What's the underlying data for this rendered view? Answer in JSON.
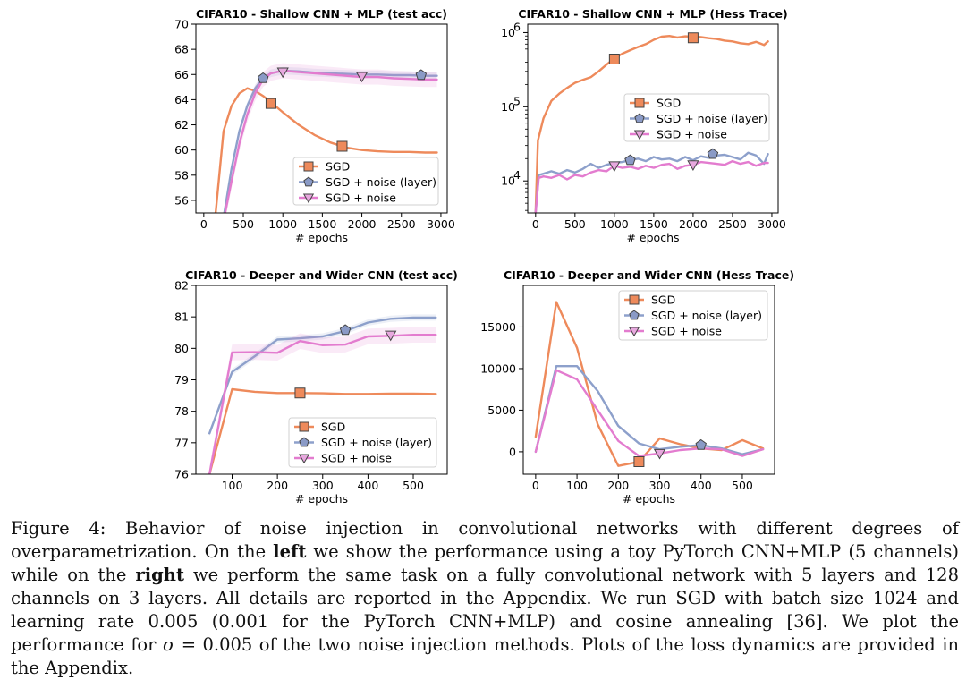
{
  "colors": {
    "sgd": "#ee8a5b",
    "layer": "#8da0cb",
    "noise": "#e37ccf",
    "marker_layer": "#8a9ac6",
    "marker_noise": "#e7a8de"
  },
  "chart_data": [
    {
      "id": "p1",
      "type": "line",
      "title": "CIFAR10 - Shallow CNN + MLP  (test acc)",
      "xlabel": "# epochs",
      "ylabel": "",
      "xlim": [
        -100,
        3080
      ],
      "ylim": [
        55,
        70
      ],
      "yscale": "linear",
      "xticks": [
        {
          "v": 0,
          "label": "0"
        },
        {
          "v": 500,
          "label": "500"
        },
        {
          "v": 1000,
          "label": "1000"
        },
        {
          "v": 1500,
          "label": "1500"
        },
        {
          "v": 2000,
          "label": "2000"
        },
        {
          "v": 2500,
          "label": "2500"
        },
        {
          "v": 3000,
          "label": "3000"
        }
      ],
      "yticks": [
        {
          "v": 56,
          "label": "56"
        },
        {
          "v": 58,
          "label": "58"
        },
        {
          "v": 60,
          "label": "60"
        },
        {
          "v": 62,
          "label": "62"
        },
        {
          "v": 64,
          "label": "64"
        },
        {
          "v": 66,
          "label": "66"
        },
        {
          "v": 68,
          "label": "68"
        },
        {
          "v": 70,
          "label": "70"
        }
      ],
      "legend": {
        "position": "lower-right",
        "entries": [
          "SGD",
          "SGD + noise (layer)",
          "SGD + noise"
        ]
      },
      "series": [
        {
          "name": "SGD",
          "key": "sgd",
          "marker": "square",
          "band": 0,
          "x": [
            150,
            250,
            350,
            450,
            550,
            650,
            750,
            850,
            1000,
            1200,
            1400,
            1600,
            1800,
            2000,
            2200,
            2400,
            2600,
            2800,
            2950
          ],
          "y": [
            55,
            61.5,
            63.5,
            64.5,
            64.9,
            64.7,
            64.3,
            63.8,
            63.0,
            62.0,
            61.2,
            60.6,
            60.2,
            60.0,
            59.9,
            59.85,
            59.85,
            59.8,
            59.8
          ],
          "markers": [
            {
              "x": 850,
              "y": 63.7
            },
            {
              "x": 1750,
              "y": 60.3
            }
          ]
        },
        {
          "name": "SGD + noise (layer)",
          "key": "layer",
          "marker": "pentagon",
          "band": 0.3,
          "x": [
            260,
            350,
            450,
            550,
            650,
            750,
            850,
            1000,
            1200,
            1400,
            1600,
            1800,
            2000,
            2200,
            2400,
            2600,
            2800,
            2950
          ],
          "y": [
            55,
            58.5,
            61.5,
            63.5,
            64.9,
            65.7,
            66.1,
            66.3,
            66.25,
            66.15,
            66.1,
            66.05,
            66.0,
            66.0,
            65.95,
            65.95,
            65.9,
            65.9
          ],
          "markers": [
            {
              "x": 750,
              "y": 65.7
            },
            {
              "x": 2750,
              "y": 65.95
            }
          ]
        },
        {
          "name": "SGD + noise",
          "key": "noise",
          "marker": "tri_down",
          "band": 0.6,
          "x": [
            270,
            350,
            450,
            550,
            650,
            750,
            850,
            1000,
            1200,
            1400,
            1600,
            1800,
            2000,
            2200,
            2400,
            2600,
            2800,
            2950
          ],
          "y": [
            55,
            57.5,
            60.5,
            62.8,
            64.5,
            65.6,
            66.1,
            66.3,
            66.2,
            66.1,
            66.0,
            65.9,
            65.8,
            65.8,
            65.7,
            65.65,
            65.6,
            65.6
          ],
          "markers": [
            {
              "x": 1000,
              "y": 66.2
            },
            {
              "x": 2000,
              "y": 65.85
            }
          ]
        }
      ]
    },
    {
      "id": "p2",
      "type": "line",
      "title": "CIFAR10 - Shallow CNN + MLP  (Hess Trace)",
      "xlabel": "# epochs",
      "ylabel": "",
      "xlim": [
        -100,
        3080
      ],
      "ylim": [
        3700,
        1300000
      ],
      "yscale": "log",
      "xticks": [
        {
          "v": 0,
          "label": "0"
        },
        {
          "v": 500,
          "label": "500"
        },
        {
          "v": 1000,
          "label": "1000"
        },
        {
          "v": 1500,
          "label": "1500"
        },
        {
          "v": 2000,
          "label": "2000"
        },
        {
          "v": 2500,
          "label": "2500"
        },
        {
          "v": 3000,
          "label": "3000"
        }
      ],
      "yticks": [
        {
          "v": 10000,
          "label": "10",
          "exp": "4"
        },
        {
          "v": 100000,
          "label": "10",
          "exp": "5"
        },
        {
          "v": 1000000,
          "label": "10",
          "exp": "6"
        }
      ],
      "legend": {
        "position": "center-right",
        "entries": [
          "SGD",
          "SGD + noise (layer)",
          "SGD + noise"
        ]
      },
      "series": [
        {
          "name": "SGD",
          "key": "sgd",
          "marker": "square",
          "band": 0,
          "x": [
            0,
            30,
            100,
            200,
            300,
            400,
            500,
            600,
            700,
            800,
            900,
            1000,
            1100,
            1200,
            1300,
            1400,
            1500,
            1600,
            1700,
            1800,
            1900,
            2000,
            2100,
            2200,
            2300,
            2400,
            2500,
            2600,
            2700,
            2800,
            2900,
            2950
          ],
          "y": [
            3700,
            35000,
            70000,
            120000,
            150000,
            180000,
            210000,
            230000,
            250000,
            300000,
            370000,
            450000,
            520000,
            580000,
            640000,
            700000,
            800000,
            880000,
            900000,
            860000,
            890000,
            880000,
            870000,
            840000,
            820000,
            780000,
            760000,
            720000,
            700000,
            750000,
            680000,
            760000
          ],
          "markers": [
            {
              "x": 1000,
              "y": 440000
            },
            {
              "x": 2000,
              "y": 850000
            }
          ]
        },
        {
          "name": "SGD + noise (layer)",
          "key": "layer",
          "marker": "pentagon",
          "band": 0,
          "x": [
            0,
            40,
            100,
            200,
            300,
            400,
            500,
            600,
            700,
            800,
            900,
            1000,
            1100,
            1200,
            1300,
            1400,
            1500,
            1600,
            1700,
            1800,
            1900,
            2000,
            2100,
            2200,
            2300,
            2400,
            2500,
            2600,
            2700,
            2800,
            2900,
            2950
          ],
          "y": [
            3700,
            12000,
            12500,
            13500,
            12500,
            14000,
            13000,
            14500,
            17000,
            15000,
            16500,
            17500,
            18000,
            19000,
            20000,
            18500,
            21000,
            19500,
            20000,
            18500,
            21000,
            19000,
            21500,
            20500,
            22000,
            22500,
            21000,
            19500,
            24000,
            22000,
            17000,
            23000
          ],
          "markers": [
            {
              "x": 1200,
              "y": 19000
            },
            {
              "x": 2250,
              "y": 23000
            }
          ]
        },
        {
          "name": "SGD + noise",
          "key": "noise",
          "marker": "tri_down",
          "band": 0,
          "x": [
            0,
            40,
            100,
            200,
            300,
            400,
            500,
            600,
            700,
            800,
            900,
            1000,
            1100,
            1200,
            1300,
            1400,
            1500,
            1600,
            1700,
            1800,
            1900,
            2000,
            2100,
            2200,
            2300,
            2400,
            2500,
            2600,
            2700,
            2800,
            2900,
            2950
          ],
          "y": [
            3700,
            11000,
            11500,
            11000,
            12000,
            10500,
            12000,
            11500,
            13000,
            14000,
            13500,
            16000,
            15000,
            15500,
            14500,
            16000,
            15000,
            16500,
            17000,
            14500,
            16000,
            16500,
            18000,
            17500,
            17000,
            16500,
            18500,
            17000,
            18000,
            16000,
            17500,
            17500
          ],
          "markers": [
            {
              "x": 1000,
              "y": 16000
            },
            {
              "x": 2000,
              "y": 16500
            }
          ]
        }
      ]
    },
    {
      "id": "p3",
      "type": "line",
      "title": "CIFAR10 - Deeper and Wider CNN (test acc)",
      "xlabel": "# epochs",
      "ylabel": "",
      "xlim": [
        20,
        575
      ],
      "ylim": [
        76,
        82
      ],
      "yscale": "linear",
      "xticks": [
        {
          "v": 100,
          "label": "100"
        },
        {
          "v": 200,
          "label": "200"
        },
        {
          "v": 300,
          "label": "300"
        },
        {
          "v": 400,
          "label": "400"
        },
        {
          "v": 500,
          "label": "500"
        }
      ],
      "yticks": [
        {
          "v": 76,
          "label": "76"
        },
        {
          "v": 77,
          "label": "77"
        },
        {
          "v": 78,
          "label": "78"
        },
        {
          "v": 79,
          "label": "79"
        },
        {
          "v": 80,
          "label": "80"
        },
        {
          "v": 81,
          "label": "81"
        },
        {
          "v": 82,
          "label": "82"
        }
      ],
      "legend": {
        "position": "lower-right",
        "entries": [
          "SGD",
          "SGD + noise (layer)",
          "SGD + noise"
        ]
      },
      "series": [
        {
          "name": "SGD",
          "key": "sgd",
          "marker": "square",
          "band": 0,
          "x": [
            50,
            100,
            150,
            200,
            250,
            300,
            350,
            400,
            450,
            500,
            550
          ],
          "y": [
            76.0,
            78.7,
            78.62,
            78.58,
            78.58,
            78.57,
            78.55,
            78.55,
            78.56,
            78.56,
            78.55
          ],
          "markers": [
            {
              "x": 250,
              "y": 78.58
            }
          ]
        },
        {
          "name": "SGD + noise (layer)",
          "key": "layer",
          "marker": "pentagon",
          "band": 0.1,
          "x": [
            50,
            100,
            150,
            200,
            250,
            300,
            350,
            400,
            450,
            500,
            550
          ],
          "y": [
            77.3,
            79.25,
            79.75,
            80.28,
            80.32,
            80.38,
            80.55,
            80.82,
            80.94,
            80.98,
            80.98
          ],
          "markers": [
            {
              "x": 350,
              "y": 80.58
            }
          ]
        },
        {
          "name": "SGD + noise",
          "key": "noise",
          "marker": "tri_down",
          "band": 0.25,
          "x": [
            50,
            100,
            150,
            200,
            250,
            300,
            350,
            400,
            450,
            500,
            550
          ],
          "y": [
            76.0,
            79.87,
            79.88,
            79.86,
            80.23,
            80.1,
            80.12,
            80.38,
            80.4,
            80.43,
            80.43
          ],
          "markers": [
            {
              "x": 450,
              "y": 80.42
            }
          ]
        }
      ]
    },
    {
      "id": "p4",
      "type": "line",
      "title": "CIFAR10 - Deeper and Wider CNN (Hess Trace)",
      "xlabel": "# epochs",
      "ylabel": "",
      "xlim": [
        -30,
        578
      ],
      "ylim": [
        -2700,
        20000
      ],
      "yscale": "linear",
      "xticks": [
        {
          "v": 0,
          "label": "0"
        },
        {
          "v": 100,
          "label": "100"
        },
        {
          "v": 200,
          "label": "200"
        },
        {
          "v": 300,
          "label": "300"
        },
        {
          "v": 400,
          "label": "400"
        },
        {
          "v": 500,
          "label": "500"
        }
      ],
      "yticks": [
        {
          "v": 0,
          "label": "0"
        },
        {
          "v": 5000,
          "label": "5000"
        },
        {
          "v": 10000,
          "label": "10000"
        },
        {
          "v": 15000,
          "label": "15000"
        }
      ],
      "legend": {
        "position": "upper-right",
        "entries": [
          "SGD",
          "SGD + noise (layer)",
          "SGD + noise"
        ]
      },
      "series": [
        {
          "name": "SGD",
          "key": "sgd",
          "marker": "square",
          "band": 0,
          "x": [
            0,
            50,
            100,
            150,
            200,
            250,
            300,
            350,
            400,
            450,
            500,
            550
          ],
          "y": [
            1800,
            18000,
            12500,
            3300,
            -1700,
            -1200,
            1600,
            900,
            400,
            200,
            1400,
            400
          ],
          "markers": [
            {
              "x": 250,
              "y": -1200
            }
          ]
        },
        {
          "name": "SGD + noise (layer)",
          "key": "layer",
          "marker": "pentagon",
          "band": 0,
          "x": [
            0,
            50,
            100,
            150,
            200,
            250,
            300,
            350,
            400,
            450,
            500,
            550
          ],
          "y": [
            0,
            10300,
            10300,
            7300,
            3100,
            1000,
            300,
            600,
            800,
            400,
            -300,
            300
          ],
          "markers": [
            {
              "x": 400,
              "y": 800
            }
          ]
        },
        {
          "name": "SGD + noise",
          "key": "noise",
          "marker": "tri_down",
          "band": 0,
          "x": [
            0,
            50,
            100,
            150,
            200,
            250,
            300,
            350,
            400,
            450,
            500,
            550
          ],
          "y": [
            0,
            9800,
            8700,
            5000,
            1300,
            -500,
            -200,
            200,
            400,
            300,
            -500,
            300
          ],
          "markers": [
            {
              "x": 300,
              "y": -200
            }
          ]
        }
      ]
    }
  ],
  "caption": {
    "label": "Figure 4:",
    "p1": " Behavior of noise injection in convolutional networks with different degrees of overparametrization. On the ",
    "left": "left",
    "p2": " we show the performance using a toy PyTorch CNN+MLP (5 channels) while on the ",
    "right": "right",
    "p3": " we perform the same task on a fully convolutional network with 5 layers and 128 channels on 3 layers. All details are reported in the Appendix. We run SGD with batch size 1024 and learning rate 0.005 (0.001 for the PyTorch CNN+MLP) and cosine annealing [36]. We plot the performance for ",
    "sigma": "σ",
    "p4": " = 0.005 of the two noise injection methods. Plots of the loss dynamics are provided in the Appendix."
  }
}
